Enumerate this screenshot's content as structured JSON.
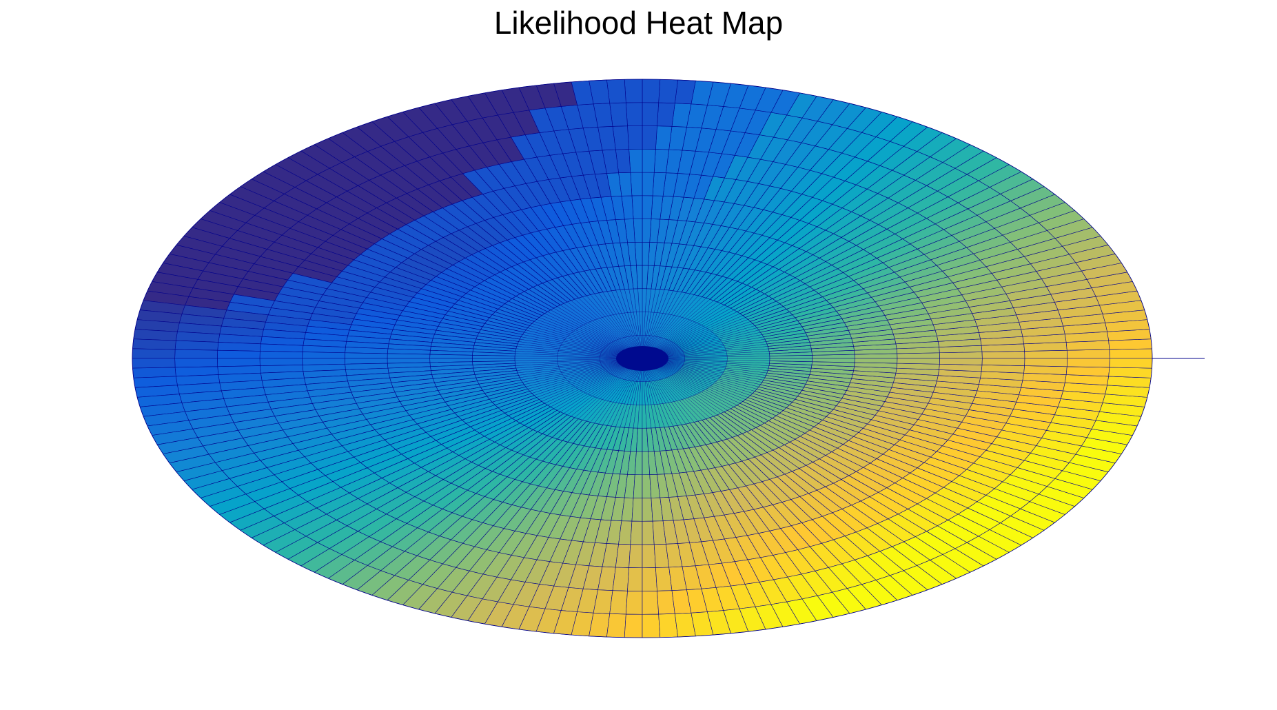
{
  "chart_data": {
    "type": "heatmap",
    "projection": "polar-surface-perspective",
    "title": "Likelihood Heat Map",
    "colormap": "parula",
    "colormap_stops": [
      "#352a87",
      "#0f5cdd",
      "#1481d6",
      "#06a4ca",
      "#2eb7a4",
      "#87bf77",
      "#d1bb59",
      "#fec832",
      "#f9fb0e"
    ],
    "edge_color": "#00008b",
    "background_color": "#ffffff",
    "radial_rings": 12,
    "angular_sectors": 180,
    "likelihood_peak_direction": "lower-right",
    "likelihood_range": [
      0,
      1
    ],
    "grid": false,
    "axes_visible": false,
    "colorbar": false
  }
}
